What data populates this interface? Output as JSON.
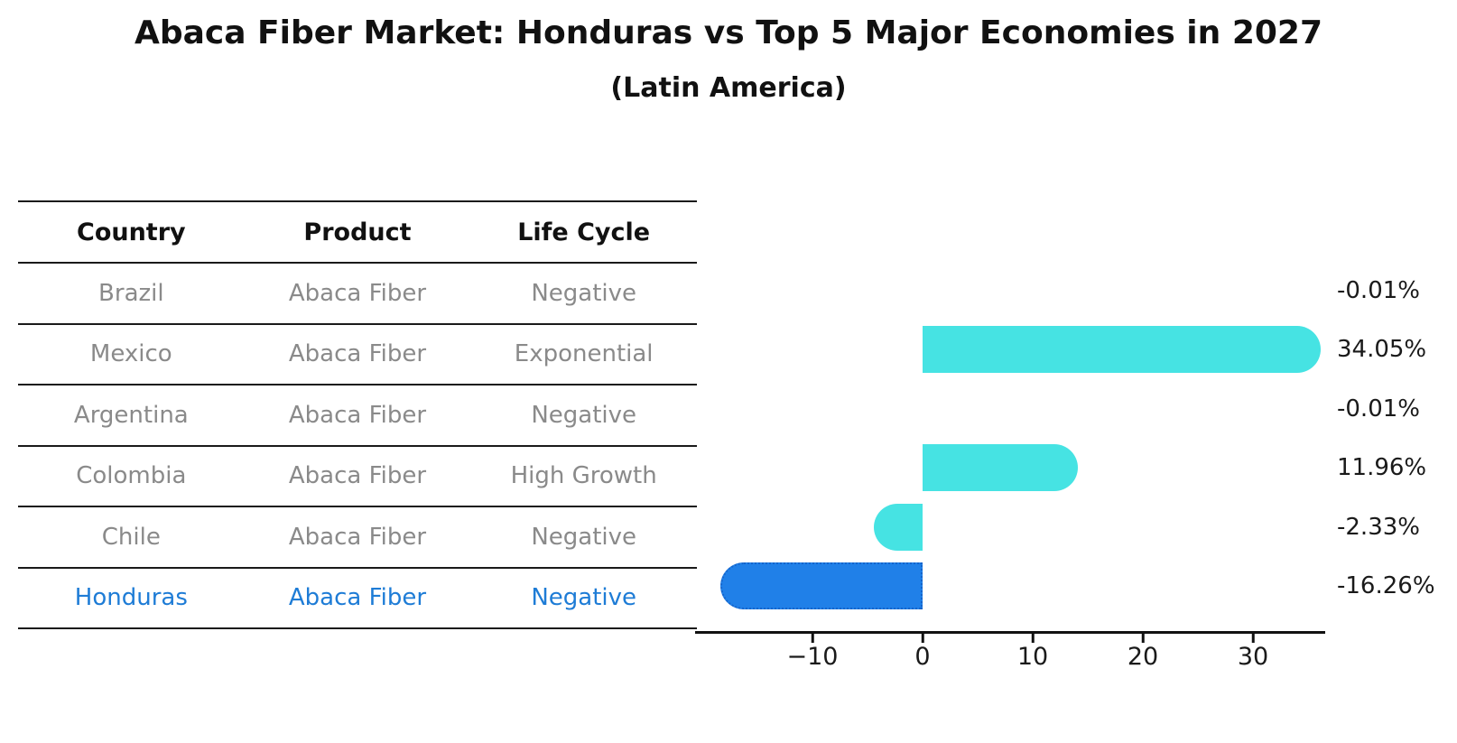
{
  "title": "Abaca Fiber Market: Honduras vs Top 5 Major Economies in 2027",
  "subtitle": "(Latin America)",
  "table": {
    "headers": [
      "Country",
      "Product",
      "Life Cycle"
    ],
    "rows": [
      {
        "country": "Brazil",
        "product": "Abaca Fiber",
        "life_cycle": "Negative",
        "highlight": false
      },
      {
        "country": "Mexico",
        "product": "Abaca Fiber",
        "life_cycle": "Exponential",
        "highlight": false
      },
      {
        "country": "Argentina",
        "product": "Abaca Fiber",
        "life_cycle": "Negative",
        "highlight": false
      },
      {
        "country": "Colombia",
        "product": "Abaca Fiber",
        "life_cycle": "High Growth",
        "highlight": false
      },
      {
        "country": "Chile",
        "product": "Abaca Fiber",
        "life_cycle": "Negative",
        "highlight": false
      },
      {
        "country": "Honduras",
        "product": "Abaca Fiber",
        "life_cycle": "Negative",
        "highlight": true
      }
    ]
  },
  "chart_data": {
    "type": "bar",
    "orientation": "horizontal",
    "title": "Abaca Fiber Market: Honduras vs Top 5 Major Economies in 2027",
    "subtitle": "(Latin America)",
    "categories": [
      "Brazil",
      "Mexico",
      "Argentina",
      "Colombia",
      "Chile",
      "Honduras"
    ],
    "values": [
      -0.01,
      34.05,
      -0.01,
      11.96,
      -2.33,
      -16.26
    ],
    "value_labels": [
      "-0.01%",
      "34.05%",
      "-0.01%",
      "11.96%",
      "-2.33%",
      "-16.26%"
    ],
    "unit": "%",
    "highlight_category": "Honduras",
    "x_ticks": [
      -10,
      0,
      10,
      20,
      30
    ],
    "x_tick_labels": [
      "−10",
      "0",
      "10",
      "20",
      "30"
    ],
    "xlim": [
      -20.6,
      36.6
    ],
    "grid": false,
    "legend": false,
    "colors": {
      "default_bar": "#46e3e3",
      "highlight_bar": "#2080e8",
      "highlight_border": "#1565cc",
      "highlight_text": "#1e7cd6",
      "row_text": "#8a8a8a",
      "axis": "#111111"
    }
  }
}
